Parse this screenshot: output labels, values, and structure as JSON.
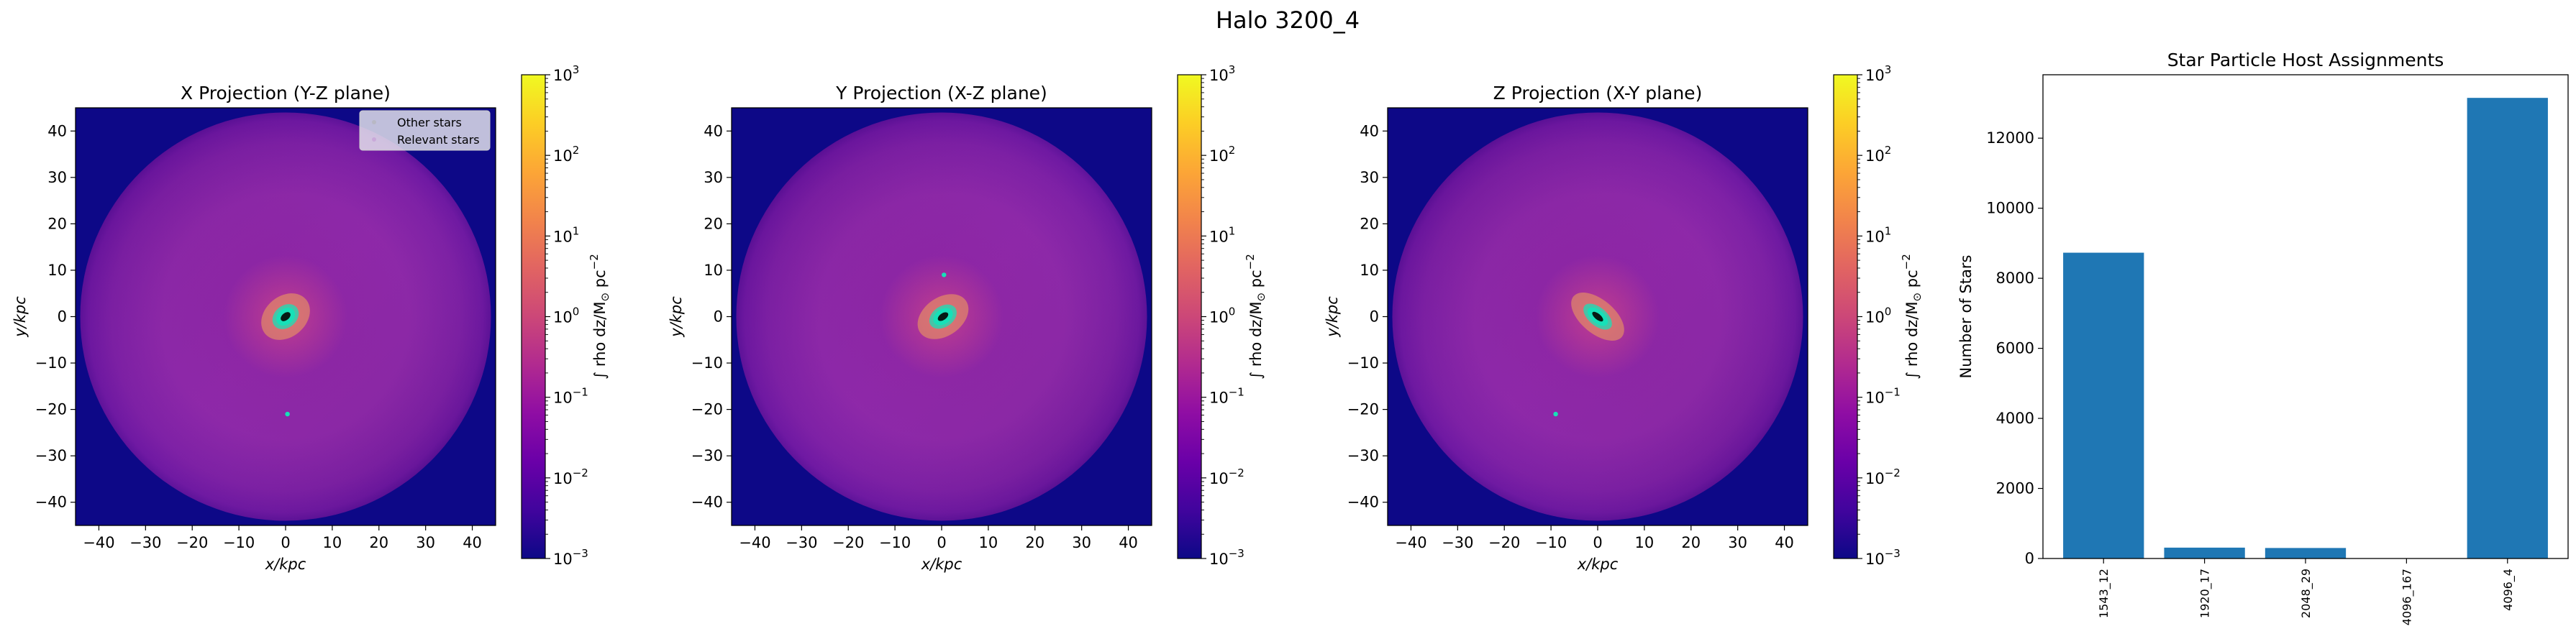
{
  "figure": {
    "suptitle": "Halo 3200_4"
  },
  "colors": {
    "cmap": [
      "#0d0887",
      "#41049d",
      "#6a00a8",
      "#8f0da4",
      "#b12a90",
      "#cc4778",
      "#e16462",
      "#f2844b",
      "#fca636",
      "#fcce25",
      "#f0f921"
    ],
    "star_marker": "#17e0b8",
    "bar": "#1f77b4"
  },
  "colorbar": {
    "label_parts": [
      "∫ rho dz/M",
      "⊙",
      " pc",
      "−2"
    ],
    "ticks": [
      {
        "base": "10",
        "exp": "3"
      },
      {
        "base": "10",
        "exp": "2"
      },
      {
        "base": "10",
        "exp": "1"
      },
      {
        "base": "10",
        "exp": "0"
      },
      {
        "base": "10",
        "exp": "−1"
      },
      {
        "base": "10",
        "exp": "−2"
      },
      {
        "base": "10",
        "exp": "−3"
      }
    ]
  },
  "legend": {
    "entries": [
      "Other stars",
      "Relevant stars"
    ]
  },
  "chart_data": [
    {
      "type": "heatmap",
      "title": "X Projection (Y-Z plane)",
      "xlabel": "x/kpc",
      "ylabel": "y/kpc",
      "xlim": [
        -45,
        45
      ],
      "ylim": [
        -45,
        45
      ],
      "xticks": [
        -40,
        -30,
        -20,
        -10,
        0,
        10,
        20,
        30,
        40
      ],
      "yticks": [
        -40,
        -30,
        -20,
        -10,
        0,
        10,
        20,
        30,
        40
      ],
      "color_scale": "log",
      "clim": [
        0.001,
        1000
      ],
      "disk_radius_kpc": 44,
      "core": {
        "x": 0,
        "y": 0,
        "rx": 2.2,
        "ry": 1.7,
        "angle": -40
      },
      "extra_stars": [
        {
          "x": 0.4,
          "y": -21
        }
      ],
      "has_legend": true
    },
    {
      "type": "heatmap",
      "title": "Y Projection (X-Z plane)",
      "xlabel": "x/kpc",
      "ylabel": "y/kpc",
      "xlim": [
        -45,
        45
      ],
      "ylim": [
        -45,
        45
      ],
      "xticks": [
        -40,
        -30,
        -20,
        -10,
        0,
        10,
        20,
        30,
        40
      ],
      "yticks": [
        -40,
        -30,
        -20,
        -10,
        0,
        10,
        20,
        30,
        40
      ],
      "color_scale": "log",
      "clim": [
        0.001,
        1000
      ],
      "disk_radius_kpc": 44,
      "core": {
        "x": 0.3,
        "y": 0,
        "rx": 2.3,
        "ry": 1.6,
        "angle": -35
      },
      "extra_stars": [
        {
          "x": 0.5,
          "y": 9
        }
      ],
      "has_legend": false
    },
    {
      "type": "heatmap",
      "title": "Z Projection (X-Y plane)",
      "xlabel": "x/kpc",
      "ylabel": "y/kpc",
      "xlim": [
        -45,
        45
      ],
      "ylim": [
        -45,
        45
      ],
      "xticks": [
        -40,
        -30,
        -20,
        -10,
        0,
        10,
        20,
        30,
        40
      ],
      "yticks": [
        -40,
        -30,
        -20,
        -10,
        0,
        10,
        20,
        30,
        40
      ],
      "color_scale": "log",
      "clim": [
        0.001,
        1000
      ],
      "disk_radius_kpc": 44,
      "core": {
        "x": 0,
        "y": 0,
        "rx": 2.6,
        "ry": 1.4,
        "angle": 40
      },
      "extra_stars": [
        {
          "x": -9,
          "y": -21
        }
      ],
      "has_legend": false
    },
    {
      "type": "bar",
      "title": "Star Particle Host Assignments",
      "xlabel": "",
      "ylabel": "Number of Stars",
      "categories": [
        "1543_12",
        "1920_17",
        "2048_29",
        "4096_167",
        "4096_4"
      ],
      "values": [
        8730,
        310,
        300,
        5,
        13150
      ],
      "ylim": [
        0,
        13810
      ],
      "yticks": [
        0,
        2000,
        4000,
        6000,
        8000,
        10000,
        12000
      ]
    }
  ]
}
